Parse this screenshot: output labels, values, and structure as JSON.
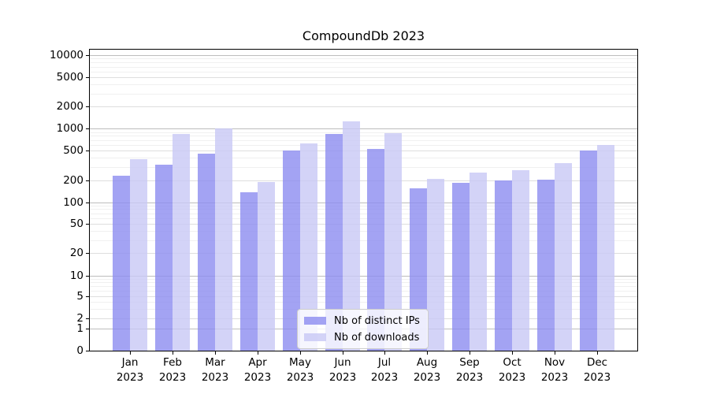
{
  "figure": {
    "title": "CompoundDb 2023",
    "background": "#ffffff"
  },
  "chart_data": {
    "type": "bar",
    "title": "CompoundDb 2023",
    "categories": [
      "Jan",
      "Feb",
      "Mar",
      "Apr",
      "May",
      "Jun",
      "Jul",
      "Aug",
      "Sep",
      "Oct",
      "Nov",
      "Dec"
    ],
    "category_year": "2023",
    "series": [
      {
        "name": "Nb of distinct IPs",
        "color": "#8c8cf0",
        "alpha": 0.8,
        "values": [
          230,
          320,
          455,
          135,
          500,
          850,
          520,
          155,
          185,
          200,
          205,
          500
        ]
      },
      {
        "name": "Nb of downloads",
        "color": "#c8c8f5",
        "alpha": 0.8,
        "values": [
          380,
          850,
          1000,
          190,
          620,
          1250,
          870,
          210,
          250,
          270,
          335,
          600
        ]
      }
    ],
    "yscale": "symlog",
    "ylim": [
      0,
      10000
    ],
    "yticks": [
      0,
      1,
      2,
      5,
      10,
      20,
      50,
      100,
      200,
      500,
      1000,
      2000,
      5000,
      10000
    ],
    "grid": true,
    "legend_position": "lower center",
    "axis_color": "#000000",
    "grid_colors": {
      "decade": "#bdbdbd",
      "major": "#dedede",
      "minor": "#f0f0f0"
    }
  }
}
